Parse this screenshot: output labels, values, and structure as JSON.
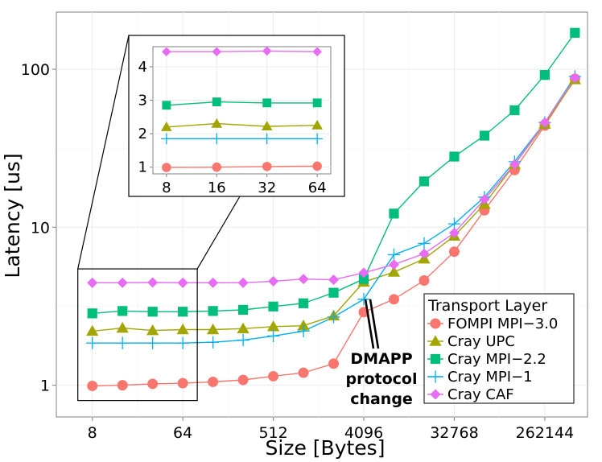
{
  "chart_data": {
    "type": "line",
    "xlabel": "Size [Bytes]",
    "ylabel": "Latency [us]",
    "x_scale": "log2",
    "y_scale": "log10",
    "x_tick_labels": [
      "8",
      "64",
      "512",
      "4096",
      "32768",
      "262144"
    ],
    "y_tick_labels": [
      "1",
      "10",
      "100"
    ],
    "xlim": [
      3.5,
      700000
    ],
    "ylim": [
      0.63,
      230
    ],
    "grid": true,
    "legend": {
      "title": "Transport Layer",
      "position": "bottom-right"
    },
    "x": [
      8,
      16,
      32,
      64,
      128,
      256,
      512,
      1024,
      2048,
      4096,
      8192,
      16384,
      32768,
      65536,
      131072,
      262144,
      524288
    ],
    "series": [
      {
        "name": "FOMPI MPI−3.0",
        "color": "#f8766d",
        "marker": "circle",
        "values": [
          0.99,
          1.0,
          1.02,
          1.03,
          1.05,
          1.08,
          1.14,
          1.2,
          1.37,
          2.9,
          3.5,
          4.6,
          7.0,
          12.8,
          23,
          44,
          87
        ]
      },
      {
        "name": "Cray UPC",
        "color": "#a3a500",
        "marker": "triangle",
        "values": [
          2.2,
          2.3,
          2.22,
          2.25,
          2.25,
          2.28,
          2.35,
          2.38,
          2.75,
          4.5,
          5.2,
          6.3,
          8.8,
          14,
          25,
          45,
          86
        ]
      },
      {
        "name": "Cray MPI−2.2",
        "color": "#00bf7d",
        "marker": "square",
        "values": [
          2.85,
          2.95,
          2.92,
          2.92,
          2.95,
          3.0,
          3.15,
          3.3,
          3.85,
          4.7,
          12.2,
          19.5,
          28,
          38,
          55,
          92,
          170
        ]
      },
      {
        "name": "Cray MPI−1",
        "color": "#00b0f6",
        "marker": "cross",
        "values": [
          1.85,
          1.85,
          1.85,
          1.85,
          1.87,
          1.93,
          2.05,
          2.2,
          2.7,
          3.5,
          6.7,
          7.9,
          10.5,
          15.5,
          26,
          46,
          90
        ]
      },
      {
        "name": "Cray CAF",
        "color": "#e76bf3",
        "marker": "diamond",
        "values": [
          4.45,
          4.45,
          4.47,
          4.45,
          4.45,
          4.45,
          4.55,
          4.7,
          4.65,
          5.15,
          5.8,
          6.8,
          9.2,
          15,
          25,
          46,
          88
        ]
      }
    ],
    "inset": {
      "x": [
        8,
        16,
        32,
        64
      ],
      "x_tick_labels": [
        "8",
        "16",
        "32",
        "64"
      ],
      "y_tick_labels": [
        "1",
        "2",
        "3",
        "4"
      ],
      "ylim": [
        0.8,
        4.6
      ]
    },
    "annotation": {
      "lines": [
        "DMAPP",
        "protocol",
        "change"
      ],
      "points_to_x": 4096
    }
  }
}
